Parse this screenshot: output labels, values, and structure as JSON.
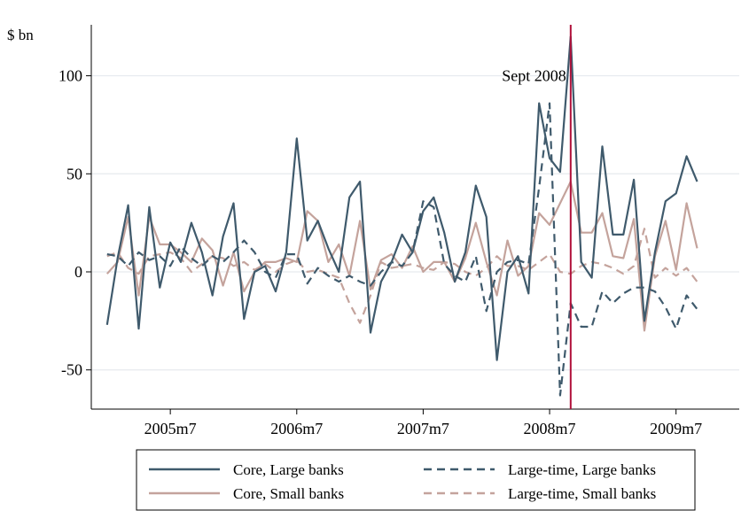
{
  "chart_data": {
    "type": "line",
    "ylabel": "$ bn",
    "xlabel": "",
    "y_ticks": [
      -50,
      0,
      50,
      100
    ],
    "y_tick_labels": [
      "-50",
      "0",
      "50",
      "100"
    ],
    "x_ticks": [
      "2005m7",
      "2006m7",
      "2007m7",
      "2008m7",
      "2009m7"
    ],
    "x_tick_positions": [
      6,
      18,
      30,
      42,
      54
    ],
    "x_start": "2005m1",
    "ylim": [
      -70,
      126
    ],
    "xlim": [
      -1.5,
      60
    ],
    "grid": "horizontal",
    "annotation": {
      "label": "Sept 2008",
      "x": 44,
      "color": "#b0103a"
    },
    "legend_position": "bottom",
    "series": [
      {
        "name": "Core, Large banks",
        "color": "#3f5a6c",
        "style": "solid",
        "values": [
          -27,
          7,
          34,
          -29,
          33,
          -8,
          15,
          5,
          25,
          10,
          -12,
          18,
          35,
          -24,
          0,
          3,
          -10,
          10,
          68,
          16,
          26,
          12,
          0,
          38,
          46,
          -31,
          -5,
          5,
          19,
          10,
          31,
          38,
          20,
          -5,
          10,
          44,
          28,
          -45,
          0,
          8,
          -11,
          86,
          58,
          51,
          120,
          5,
          -3,
          64,
          19,
          19,
          47,
          -25,
          10,
          36,
          40,
          59,
          46
        ]
      },
      {
        "name": "Core, Small banks",
        "color": "#c4a39c",
        "style": "solid",
        "values": [
          -1,
          5,
          28,
          -12,
          28,
          14,
          14,
          10,
          5,
          17,
          11,
          -7,
          10,
          -10,
          0,
          5,
          5,
          7,
          5,
          31,
          26,
          5,
          14,
          -2,
          26,
          -9,
          6,
          9,
          2,
          13,
          0,
          5,
          5,
          -5,
          7,
          25,
          5,
          -12,
          16,
          -2,
          3,
          30,
          24,
          35,
          46,
          20,
          20,
          30,
          8,
          7,
          27,
          -30,
          8,
          26,
          1,
          35,
          12
        ]
      },
      {
        "name": "Large-time, Large banks",
        "color": "#3f5a6c",
        "style": "dashed",
        "values": [
          9,
          8,
          3,
          10,
          6,
          8,
          3,
          13,
          7,
          3,
          8,
          5,
          10,
          16,
          10,
          0,
          -3,
          9,
          9,
          -6,
          2,
          -2,
          -5,
          -2,
          -5,
          -7,
          0,
          5,
          3,
          10,
          36,
          33,
          4,
          -2,
          -5,
          8,
          -20,
          0,
          5,
          6,
          4,
          43,
          86,
          -63,
          -16,
          -28,
          -28,
          -10,
          -16,
          -11,
          -8,
          -8,
          -10,
          -18,
          -29,
          -12,
          -19
        ]
      },
      {
        "name": "Large-time, Small banks",
        "color": "#c4a39c",
        "style": "dashed",
        "values": [
          8,
          10,
          2,
          -1,
          8,
          9,
          10,
          7,
          0,
          4,
          8,
          7,
          3,
          5,
          1,
          4,
          0,
          4,
          6,
          0,
          1,
          -1,
          -3,
          -16,
          -26,
          -12,
          5,
          2,
          3,
          4,
          2,
          1,
          5,
          4,
          0,
          -2,
          2,
          8,
          3,
          3,
          1,
          5,
          9,
          0,
          -1,
          3,
          5,
          4,
          2,
          -1,
          3,
          22,
          -3,
          2,
          -2,
          2,
          -5
        ]
      }
    ]
  }
}
